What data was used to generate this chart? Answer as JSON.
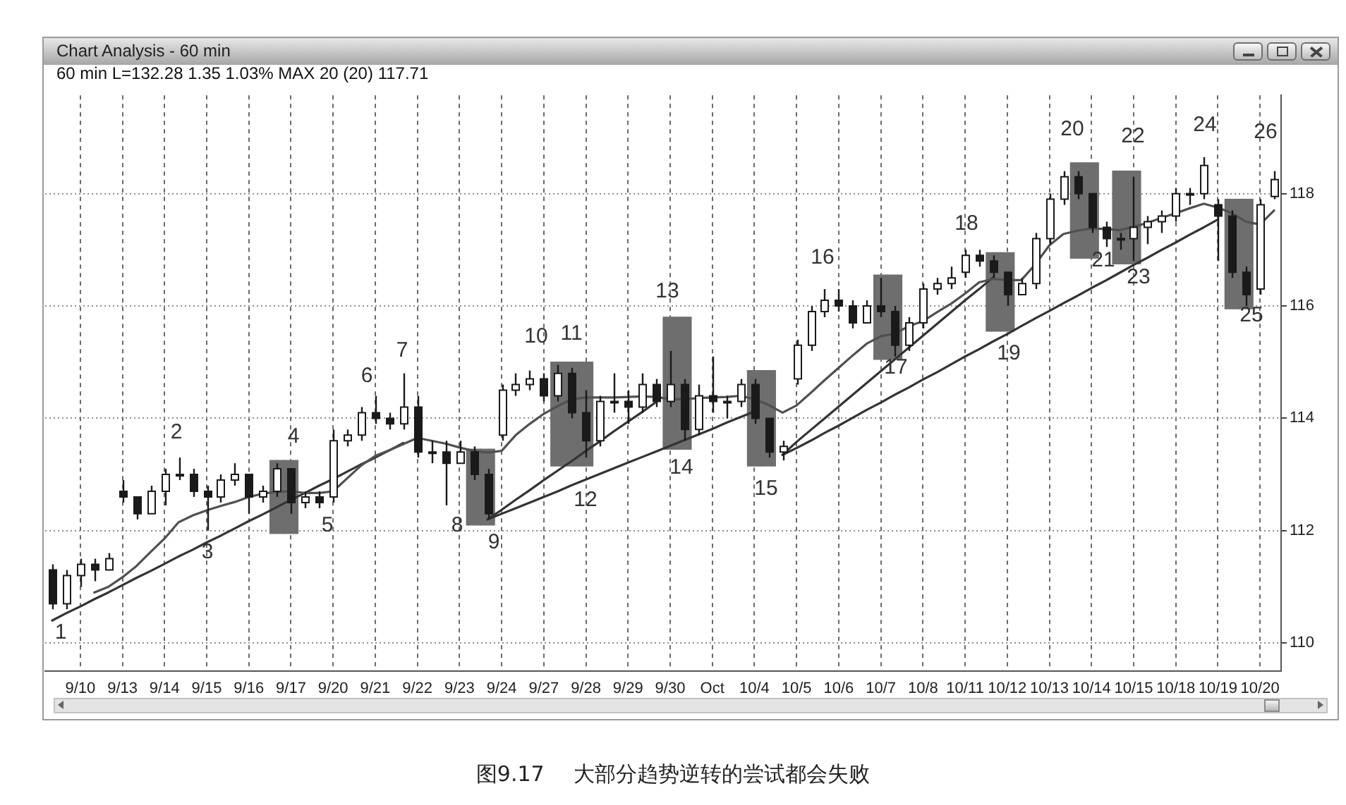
{
  "chart_data": {
    "type": "candlestick",
    "title": "Chart Analysis - 60 min",
    "subtitle": "60 min L=132.28 1.35 1.03% MAX 20 (20) 117.71",
    "color": "#1a1a1a",
    "categories": [
      null,
      null,
      "9/10",
      null,
      null,
      "9/13",
      null,
      null,
      "9/14",
      null,
      null,
      "9/15",
      null,
      null,
      "9/16",
      null,
      null,
      "9/17",
      null,
      null,
      "9/20",
      null,
      null,
      "9/21",
      null,
      null,
      "9/22",
      null,
      null,
      "9/23",
      null,
      null,
      "9/24",
      null,
      null,
      "9/27",
      null,
      null,
      "9/28",
      null,
      null,
      "9/29",
      null,
      null,
      "9/30",
      null,
      null,
      "Oct",
      null,
      null,
      "10/4",
      null,
      null,
      "10/5",
      null,
      null,
      "10/6",
      null,
      null,
      "10/7",
      null,
      null,
      "10/8",
      null,
      null,
      "10/11",
      null,
      null,
      "10/12",
      null,
      null,
      "10/13",
      null,
      null,
      "10/14",
      null,
      null,
      "10/15",
      null,
      null,
      "10/18",
      null,
      null,
      "10/19",
      null,
      null,
      "10/20",
      null
    ],
    "ohlc": [
      [
        111.3,
        111.4,
        110.6,
        110.7
      ],
      [
        110.7,
        111.3,
        110.6,
        111.2
      ],
      [
        111.2,
        111.5,
        111.0,
        111.4
      ],
      [
        111.4,
        111.5,
        111.1,
        111.3
      ],
      [
        111.3,
        111.6,
        111.3,
        111.5
      ],
      [
        112.7,
        112.9,
        112.5,
        112.6
      ],
      [
        112.6,
        112.6,
        112.2,
        112.3
      ],
      [
        112.3,
        112.8,
        112.3,
        112.7
      ],
      [
        112.7,
        113.1,
        112.45,
        113.0
      ],
      [
        113.0,
        113.3,
        112.9,
        113.0
      ],
      [
        113.0,
        113.1,
        112.6,
        112.7
      ],
      [
        112.7,
        112.8,
        112.0,
        112.6
      ],
      [
        112.6,
        113.0,
        112.5,
        112.9
      ],
      [
        112.9,
        113.2,
        112.8,
        113.0
      ],
      [
        113.0,
        113.0,
        112.3,
        112.6
      ],
      [
        112.6,
        112.8,
        112.5,
        112.7
      ],
      [
        112.7,
        113.2,
        112.6,
        113.1
      ],
      [
        113.1,
        113.1,
        112.3,
        112.5
      ],
      [
        112.5,
        112.7,
        112.4,
        112.6
      ],
      [
        112.6,
        112.7,
        112.4,
        112.5
      ],
      [
        112.6,
        113.8,
        112.5,
        113.6
      ],
      [
        113.6,
        113.8,
        113.5,
        113.7
      ],
      [
        113.7,
        114.2,
        113.6,
        114.1
      ],
      [
        114.1,
        114.4,
        113.9,
        114.0
      ],
      [
        114.0,
        114.1,
        113.8,
        113.9
      ],
      [
        113.9,
        114.8,
        113.8,
        114.2
      ],
      [
        114.2,
        114.4,
        113.3,
        113.4
      ],
      [
        113.4,
        113.6,
        113.2,
        113.4
      ],
      [
        113.4,
        113.6,
        112.45,
        113.2
      ],
      [
        113.2,
        113.6,
        113.2,
        113.4
      ],
      [
        113.4,
        113.5,
        112.9,
        113.0
      ],
      [
        113.0,
        113.1,
        112.2,
        112.3
      ],
      [
        113.7,
        114.6,
        113.6,
        114.5
      ],
      [
        114.5,
        114.8,
        114.4,
        114.6
      ],
      [
        114.6,
        114.85,
        114.5,
        114.7
      ],
      [
        114.7,
        114.8,
        114.3,
        114.4
      ],
      [
        114.4,
        114.95,
        114.3,
        114.8
      ],
      [
        114.8,
        114.9,
        114.0,
        114.1
      ],
      [
        114.1,
        114.5,
        113.3,
        113.6
      ],
      [
        113.6,
        114.4,
        113.5,
        114.3
      ],
      [
        114.3,
        114.8,
        114.1,
        114.3
      ],
      [
        114.3,
        114.5,
        113.9,
        114.2
      ],
      [
        114.2,
        114.8,
        114.1,
        114.6
      ],
      [
        114.6,
        114.7,
        114.2,
        114.3
      ],
      [
        114.3,
        115.2,
        114.2,
        114.6
      ],
      [
        114.6,
        114.7,
        113.6,
        113.8
      ],
      [
        113.8,
        114.6,
        113.7,
        114.4
      ],
      [
        114.4,
        115.1,
        114.1,
        114.3
      ],
      [
        114.3,
        114.4,
        114.0,
        114.3
      ],
      [
        114.3,
        114.7,
        114.2,
        114.6
      ],
      [
        114.6,
        114.7,
        113.9,
        114.0
      ],
      [
        114.0,
        114.0,
        113.3,
        113.4
      ],
      [
        113.4,
        113.6,
        113.25,
        113.5
      ],
      [
        114.7,
        115.4,
        114.6,
        115.3
      ],
      [
        115.3,
        116.0,
        115.2,
        115.9
      ],
      [
        115.9,
        116.3,
        115.8,
        116.1
      ],
      [
        116.1,
        116.3,
        115.9,
        116.0
      ],
      [
        116.0,
        116.1,
        115.6,
        115.7
      ],
      [
        115.7,
        116.1,
        115.7,
        116.0
      ],
      [
        116.0,
        116.5,
        115.8,
        115.9
      ],
      [
        115.9,
        116.0,
        115.1,
        115.3
      ],
      [
        115.3,
        115.8,
        115.2,
        115.7
      ],
      [
        115.7,
        116.4,
        115.6,
        116.3
      ],
      [
        116.3,
        116.5,
        116.2,
        116.4
      ],
      [
        116.4,
        116.7,
        116.3,
        116.5
      ],
      [
        116.6,
        117.0,
        116.5,
        116.9
      ],
      [
        116.9,
        117.0,
        116.7,
        116.8
      ],
      [
        116.8,
        116.9,
        116.5,
        116.6
      ],
      [
        116.6,
        116.6,
        116.0,
        116.2
      ],
      [
        116.2,
        116.5,
        116.2,
        116.4
      ],
      [
        116.4,
        117.3,
        116.3,
        117.2
      ],
      [
        117.2,
        118.0,
        117.1,
        117.9
      ],
      [
        117.9,
        118.4,
        117.8,
        118.3
      ],
      [
        118.3,
        118.4,
        117.9,
        118.0
      ],
      [
        118.0,
        118.0,
        117.3,
        117.4
      ],
      [
        117.4,
        117.5,
        117.05,
        117.2
      ],
      [
        117.2,
        117.3,
        117.0,
        117.2
      ],
      [
        117.2,
        118.3,
        116.8,
        117.4
      ],
      [
        117.4,
        117.6,
        117.1,
        117.5
      ],
      [
        117.5,
        117.7,
        117.3,
        117.6
      ],
      [
        117.6,
        118.1,
        117.5,
        118.0
      ],
      [
        118.0,
        118.1,
        117.8,
        118.0
      ],
      [
        118.0,
        118.65,
        117.9,
        118.5
      ],
      [
        117.8,
        117.9,
        116.8,
        117.6
      ],
      [
        117.6,
        117.7,
        116.5,
        116.6
      ],
      [
        116.6,
        116.7,
        116.0,
        116.2
      ],
      [
        116.3,
        117.9,
        116.2,
        117.8
      ],
      [
        117.95,
        118.4,
        117.9,
        118.25
      ]
    ],
    "series": [
      {
        "type": "bar",
        "color": "#6e6e6e",
        "base": [
          null,
          null,
          null,
          null,
          null,
          null,
          null,
          null,
          null,
          null,
          null,
          null,
          null,
          null,
          null,
          null,
          111.95,
          111.95,
          null,
          null,
          null,
          null,
          null,
          null,
          null,
          null,
          null,
          null,
          null,
          null,
          112.1,
          112.1,
          null,
          null,
          null,
          null,
          113.15,
          113.15,
          113.15,
          null,
          null,
          null,
          null,
          null,
          113.45,
          113.45,
          null,
          null,
          null,
          null,
          113.15,
          113.15,
          null,
          null,
          null,
          null,
          null,
          null,
          null,
          115.05,
          115.05,
          null,
          null,
          null,
          null,
          null,
          null,
          115.55,
          115.55,
          null,
          null,
          null,
          null,
          116.85,
          116.85,
          null,
          116.75,
          116.75,
          null,
          null,
          null,
          null,
          null,
          null,
          115.95,
          115.95,
          null,
          null
        ],
        "values": [
          null,
          null,
          null,
          null,
          null,
          null,
          null,
          null,
          null,
          null,
          null,
          null,
          null,
          null,
          null,
          null,
          1.3,
          1.3,
          null,
          null,
          null,
          null,
          null,
          null,
          null,
          null,
          null,
          null,
          null,
          null,
          1.35,
          1.35,
          null,
          null,
          null,
          null,
          1.85,
          1.85,
          1.85,
          null,
          null,
          null,
          null,
          null,
          2.35,
          2.35,
          null,
          null,
          null,
          null,
          1.7,
          1.7,
          null,
          null,
          null,
          null,
          null,
          null,
          null,
          1.5,
          1.5,
          null,
          null,
          null,
          null,
          null,
          null,
          1.4,
          1.4,
          null,
          null,
          null,
          null,
          1.7,
          1.7,
          null,
          1.65,
          1.65,
          null,
          null,
          null,
          null,
          null,
          null,
          1.95,
          1.95,
          null,
          null
        ]
      },
      {
        "type": "line",
        "color": "#505050",
        "values": [
          null,
          null,
          null,
          110.9,
          111.0,
          111.17,
          111.37,
          111.62,
          111.86,
          112.15,
          112.27,
          112.36,
          112.44,
          112.51,
          112.6,
          112.66,
          112.69,
          112.7,
          112.67,
          112.67,
          112.7,
          112.93,
          113.16,
          113.33,
          113.43,
          113.54,
          113.65,
          113.6,
          113.55,
          113.48,
          113.42,
          113.39,
          113.42,
          113.7,
          113.9,
          114.08,
          114.22,
          114.34,
          114.37,
          114.37,
          114.37,
          114.38,
          114.39,
          114.38,
          114.34,
          114.34,
          114.36,
          114.37,
          114.38,
          114.4,
          114.34,
          114.24,
          114.1,
          114.23,
          114.45,
          114.68,
          114.9,
          115.12,
          115.33,
          115.46,
          115.51,
          115.64,
          115.73,
          115.89,
          116.04,
          116.22,
          116.42,
          116.48,
          116.46,
          116.46,
          116.74,
          117.08,
          117.28,
          117.34,
          117.38,
          117.37,
          117.35,
          117.41,
          117.48,
          117.57,
          117.65,
          117.74,
          117.82,
          117.75,
          117.65,
          117.5,
          117.45,
          117.7
        ]
      },
      {
        "type": "line",
        "color": "#333333",
        "values": [
          110.4,
          110.53,
          110.65,
          110.78,
          110.9,
          111.03,
          111.16,
          111.28,
          111.41,
          111.54,
          111.66,
          111.79,
          111.91,
          112.04,
          112.17,
          112.29,
          112.42,
          112.55,
          112.67,
          112.8,
          112.92,
          113.05,
          113.18,
          113.3,
          113.43,
          113.56,
          null,
          null,
          null,
          null,
          null,
          null,
          null,
          null,
          null,
          null,
          null,
          null,
          null,
          null,
          null,
          null,
          null,
          null,
          null,
          null,
          null,
          null,
          null,
          null,
          null,
          null,
          null,
          null,
          null,
          null,
          null,
          null,
          null,
          null,
          null,
          null,
          null,
          null,
          null,
          null,
          null,
          null,
          null,
          null,
          null,
          null,
          null,
          null,
          null,
          null,
          null,
          null,
          null,
          null,
          null,
          null,
          null,
          null,
          null,
          null,
          null,
          null
        ]
      },
      {
        "type": "line",
        "color": "#333333",
        "values": [
          null,
          null,
          null,
          null,
          null,
          null,
          null,
          null,
          null,
          null,
          null,
          null,
          null,
          null,
          null,
          null,
          null,
          null,
          null,
          null,
          null,
          null,
          null,
          null,
          null,
          null,
          null,
          null,
          null,
          null,
          null,
          112.2,
          112.37,
          112.55,
          112.72,
          112.9,
          113.07,
          113.24,
          113.42,
          113.59,
          113.77,
          113.94,
          114.11,
          114.29,
          null,
          null,
          null,
          null,
          null,
          null,
          null,
          null,
          null,
          null,
          null,
          null,
          null,
          null,
          null,
          null,
          null,
          null,
          null,
          null,
          null,
          null,
          null,
          null,
          null,
          null,
          null,
          null,
          null,
          null,
          null,
          null,
          null,
          null,
          null,
          null,
          null,
          null,
          null,
          null,
          null,
          null,
          null,
          null
        ]
      },
      {
        "type": "line",
        "color": "#333333",
        "values": [
          null,
          null,
          null,
          null,
          null,
          null,
          null,
          null,
          null,
          null,
          null,
          null,
          null,
          null,
          null,
          null,
          null,
          null,
          null,
          null,
          null,
          null,
          null,
          null,
          null,
          null,
          null,
          null,
          null,
          null,
          null,
          112.2,
          112.3,
          112.4,
          112.5,
          112.6,
          112.7,
          112.81,
          112.91,
          113.01,
          113.11,
          113.21,
          113.31,
          113.41,
          113.51,
          113.61,
          113.71,
          113.81,
          113.92,
          114.02,
          114.12,
          null,
          null,
          null,
          null,
          null,
          null,
          null,
          null,
          null,
          null,
          null,
          null,
          null,
          null,
          null,
          null,
          null,
          null,
          null,
          null,
          null,
          null,
          null,
          null,
          null,
          null,
          null,
          null,
          null,
          null,
          null,
          null,
          null,
          null,
          null,
          null,
          null
        ]
      },
      {
        "type": "line",
        "color": "#333333",
        "values": [
          null,
          null,
          null,
          null,
          null,
          null,
          null,
          null,
          null,
          null,
          null,
          null,
          null,
          null,
          null,
          null,
          null,
          null,
          null,
          null,
          null,
          null,
          null,
          null,
          null,
          null,
          null,
          null,
          null,
          null,
          null,
          null,
          null,
          null,
          null,
          null,
          null,
          null,
          null,
          null,
          null,
          null,
          null,
          null,
          null,
          null,
          null,
          null,
          null,
          null,
          null,
          null,
          113.35,
          113.58,
          113.79,
          114.0,
          114.21,
          114.42,
          114.63,
          114.84,
          115.05,
          115.26,
          115.47,
          115.68,
          115.89,
          116.1,
          116.3,
          116.51,
          null,
          null,
          null,
          null,
          null,
          null,
          null,
          null,
          null,
          null,
          null,
          null,
          null,
          null,
          null,
          null,
          null,
          null,
          null,
          null
        ]
      },
      {
        "type": "line",
        "color": "#333333",
        "values": [
          null,
          null,
          null,
          null,
          null,
          null,
          null,
          null,
          null,
          null,
          null,
          null,
          null,
          null,
          null,
          null,
          null,
          null,
          null,
          null,
          null,
          null,
          null,
          null,
          null,
          null,
          null,
          null,
          null,
          null,
          null,
          null,
          null,
          null,
          null,
          null,
          null,
          null,
          null,
          null,
          null,
          null,
          null,
          null,
          null,
          null,
          null,
          null,
          null,
          null,
          null,
          null,
          113.35,
          113.47,
          113.6,
          113.74,
          113.87,
          114.01,
          114.15,
          114.28,
          114.42,
          114.55,
          114.69,
          114.82,
          114.96,
          115.1,
          115.23,
          115.37,
          115.5,
          115.64,
          115.78,
          115.91,
          116.05,
          116.18,
          116.32,
          116.45,
          116.59,
          116.73,
          116.86,
          117.0,
          117.13,
          117.27,
          117.4,
          117.54,
          null,
          null,
          null,
          null
        ]
      }
    ],
    "ylim": [
      109.5,
      119.75
    ],
    "yticks": [
      110,
      112,
      114,
      116,
      118
    ],
    "grid": true,
    "annotations": [
      "1",
      "2",
      "3",
      "4",
      "5",
      "6",
      "7",
      "8",
      "9",
      "10",
      "11",
      "12",
      "13",
      "14",
      "15",
      "16",
      "17",
      "18",
      "19",
      "20",
      "21",
      "22",
      "23",
      "24",
      "25",
      "26",
      "图9.17 大部分趋势逆转的尝试都会失败"
    ]
  }
}
